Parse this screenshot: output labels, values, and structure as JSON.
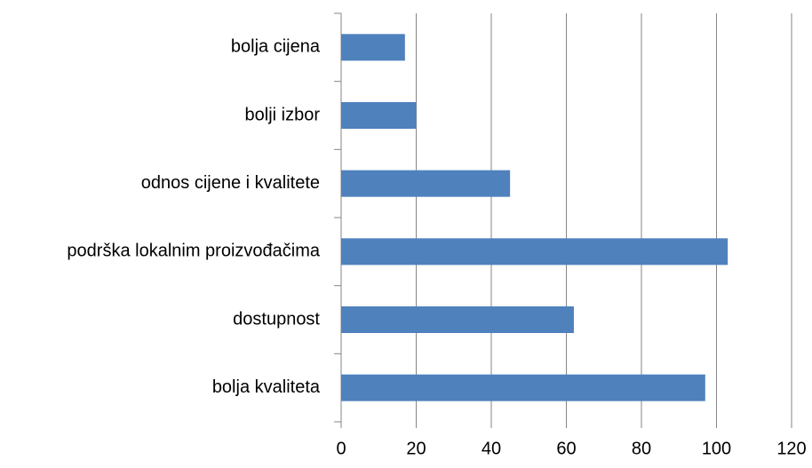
{
  "chart_data": {
    "type": "bar",
    "orientation": "horizontal",
    "categories": [
      "bolja kvaliteta",
      "dostupnost",
      "podrška lokalnim proizvođačima",
      "odnos cijene i kvalitete",
      "bolji izbor",
      "bolja cijena"
    ],
    "values": [
      97,
      62,
      103,
      45,
      20,
      17
    ],
    "color": "#4f81bd",
    "xlim": [
      0,
      120
    ],
    "xticks": [
      0,
      20,
      40,
      60,
      80,
      100,
      120
    ],
    "grid": true
  }
}
